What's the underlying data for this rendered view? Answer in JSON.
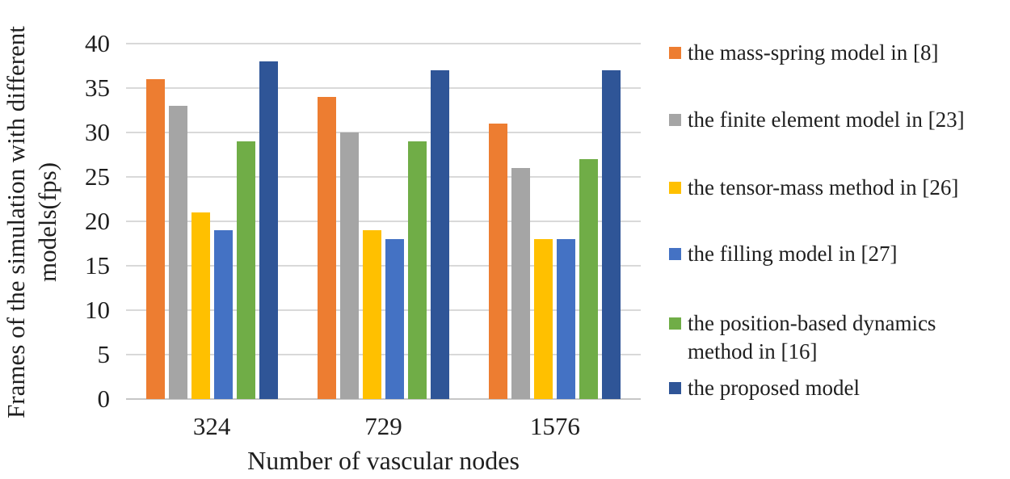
{
  "chart_data": {
    "type": "bar",
    "title": "",
    "categories": [
      "324",
      "729",
      "1576"
    ],
    "series": [
      {
        "name": "the mass-spring model in [8]",
        "color": "#ED7D31",
        "values": [
          36,
          34,
          31
        ]
      },
      {
        "name": "the finite element model in [23]",
        "color": "#A5A5A5",
        "values": [
          33,
          30,
          26
        ]
      },
      {
        "name": "the tensor-mass method in [26]",
        "color": "#FFC000",
        "values": [
          21,
          19,
          18
        ]
      },
      {
        "name": "the filling model in [27]",
        "color": "#4472C4",
        "values": [
          19,
          18,
          18
        ]
      },
      {
        "name": "the position-based dynamics method in [16]",
        "color": "#70AD47",
        "values": [
          29,
          29,
          27
        ]
      },
      {
        "name": "the proposed model",
        "color": "#2F5597",
        "values": [
          38,
          37,
          37
        ]
      }
    ],
    "xlabel": "Number of vascular nodes",
    "ylabel": "Frames of the simulation with different models(fps)",
    "ylabel_lines": [
      "Frames of the simulation with different",
      "models(fps)"
    ],
    "yticks": [
      0,
      5,
      10,
      15,
      20,
      25,
      30,
      35,
      40
    ],
    "ylim": [
      0,
      40
    ],
    "grid": true,
    "legend_position": "right",
    "colors": {
      "gridline": "#D9D9D9",
      "axis_line": "#C6C6C6",
      "text": "#1F1F1F",
      "background": "#FFFFFF"
    }
  }
}
